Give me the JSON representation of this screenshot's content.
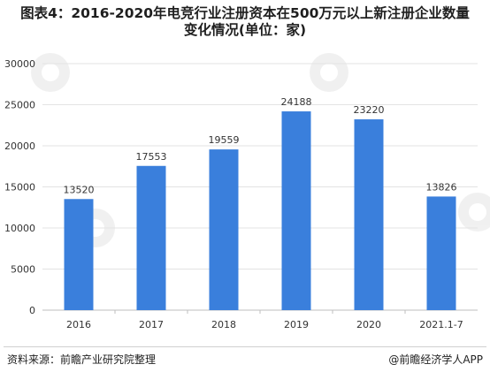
{
  "header": {
    "title_line1": "图表4：2016-2020年电竞行业注册资本在500万元以上新注册企业数量",
    "title_line2": "变化情况(单位：家)"
  },
  "footer": {
    "source": "资料来源：前瞻产业研究院整理",
    "brand": "@前瞻经济学人APP"
  },
  "colors": {
    "bar": "#3a7fdc",
    "grid": "#e3e3e3",
    "axis": "#bfbfbf"
  },
  "chart_data": {
    "type": "bar",
    "categories": [
      "2016",
      "2017",
      "2018",
      "2019",
      "2020",
      "2021.1-7"
    ],
    "values": [
      13520,
      17553,
      19559,
      24188,
      23220,
      13826
    ],
    "data_labels": [
      "13520",
      "17553",
      "19559",
      "24188",
      "23220",
      "13826"
    ],
    "ylim": [
      0,
      30000
    ],
    "yticks": [
      0,
      5000,
      10000,
      15000,
      20000,
      25000,
      30000
    ],
    "ytick_labels": [
      "0",
      "5000",
      "10000",
      "15000",
      "20000",
      "25000",
      "30000"
    ],
    "grid": true,
    "legend": "none",
    "title": "",
    "xlabel": "",
    "ylabel": ""
  }
}
